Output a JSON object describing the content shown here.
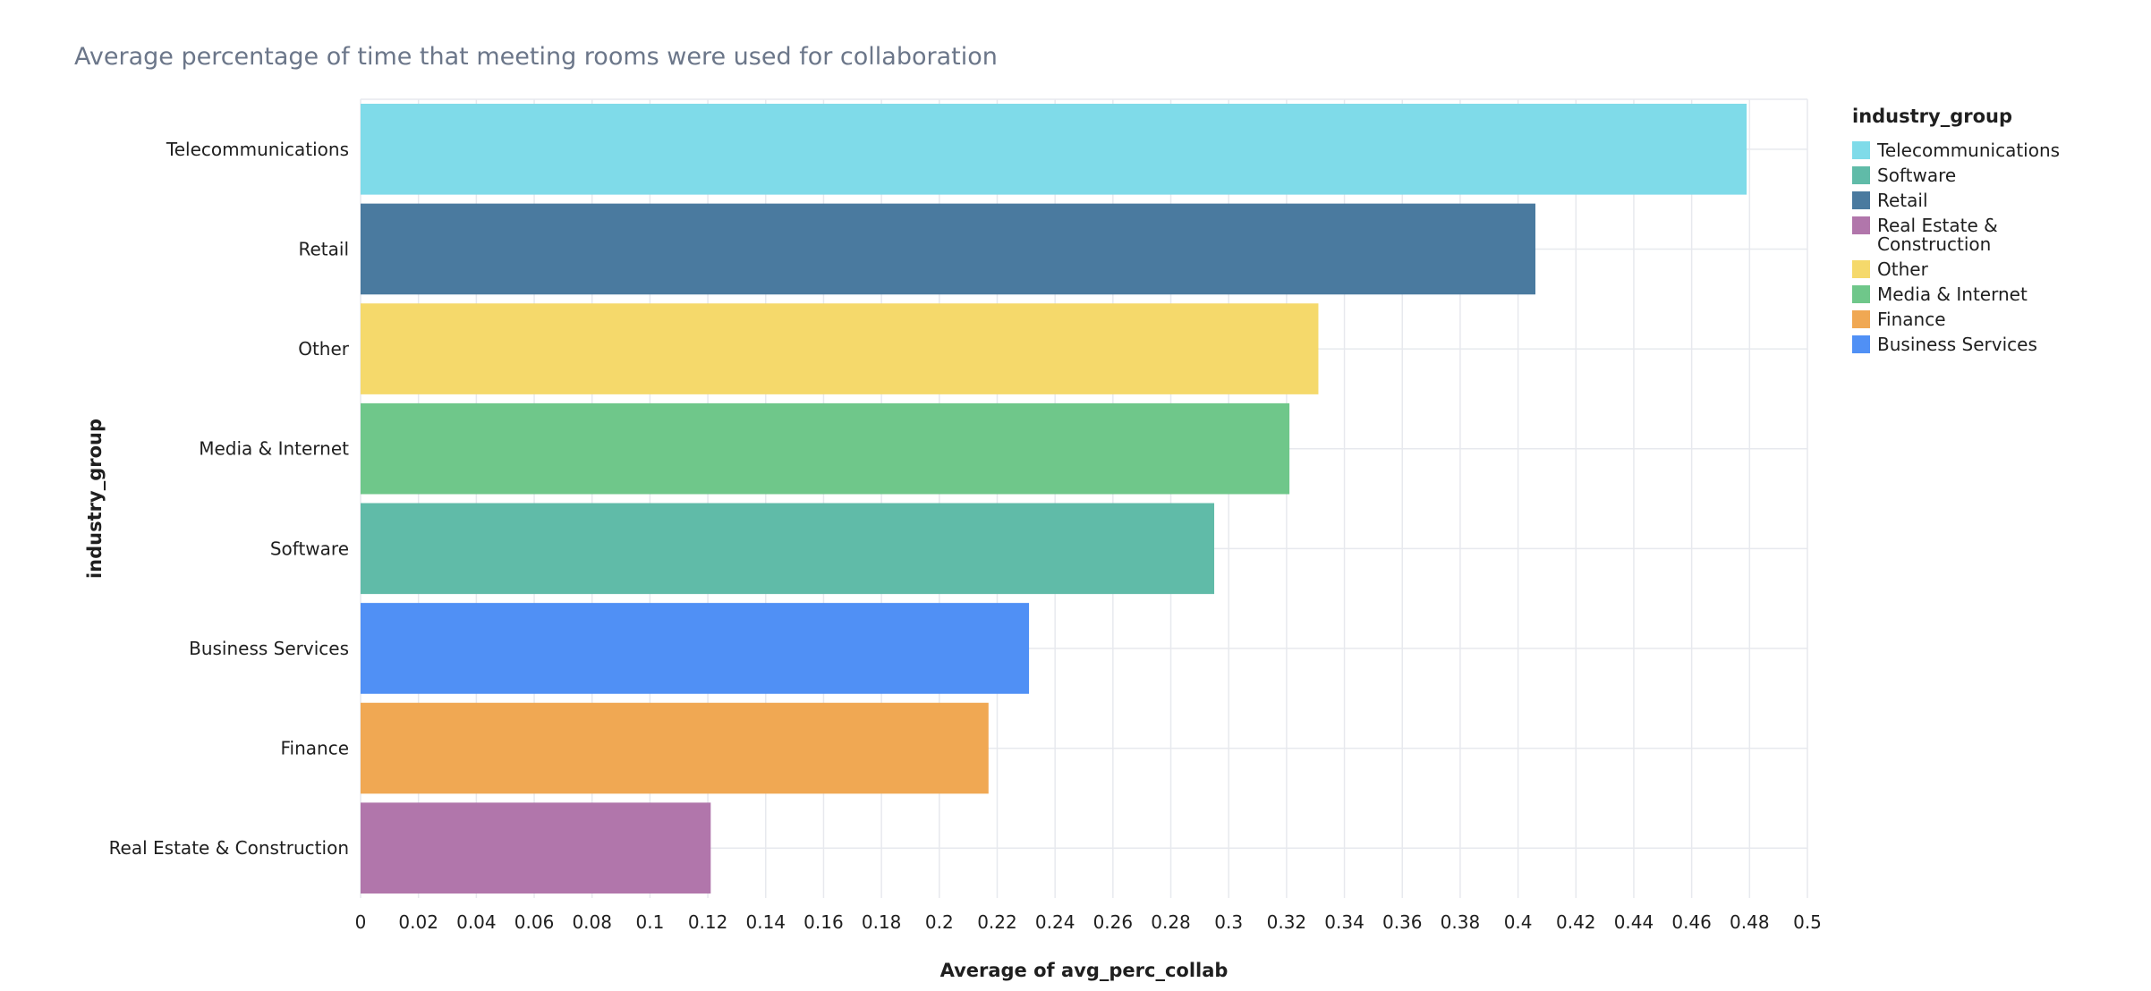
{
  "chart_data": {
    "type": "bar",
    "orientation": "horizontal",
    "title": "Average percentage of time that meeting rooms were used for collaboration",
    "xlabel": "Average of avg_perc_collab",
    "ylabel": "industry_group",
    "xlim": [
      0,
      0.5
    ],
    "x_ticks": [
      "0",
      "0.02",
      "0.04",
      "0.06",
      "0.08",
      "0.1",
      "0.12",
      "0.14",
      "0.16",
      "0.18",
      "0.2",
      "0.22",
      "0.24",
      "0.26",
      "0.28",
      "0.3",
      "0.32",
      "0.34",
      "0.36",
      "0.38",
      "0.4",
      "0.42",
      "0.44",
      "0.46",
      "0.48",
      "0.5"
    ],
    "grid": true,
    "categories": [
      "Telecommunications",
      "Retail",
      "Other",
      "Media & Internet",
      "Software",
      "Business Services",
      "Finance",
      "Real Estate & Construction"
    ],
    "values": [
      0.479,
      0.406,
      0.331,
      0.321,
      0.295,
      0.231,
      0.217,
      0.121
    ],
    "colors": [
      "#7fdbe9",
      "#4a7a9f",
      "#f5d96b",
      "#6fc78a",
      "#60bba8",
      "#5090f5",
      "#f0a853",
      "#b176ab"
    ],
    "legend": {
      "title": "industry_group",
      "position": "right",
      "items": [
        {
          "label": "Telecommunications",
          "color": "#7fdbe9"
        },
        {
          "label": "Software",
          "color": "#60bba8"
        },
        {
          "label": "Retail",
          "color": "#4a7a9f"
        },
        {
          "label": "Real Estate & Construction",
          "color": "#b176ab"
        },
        {
          "label": "Other",
          "color": "#f5d96b"
        },
        {
          "label": "Media & Internet",
          "color": "#6fc78a"
        },
        {
          "label": "Finance",
          "color": "#f0a853"
        },
        {
          "label": "Business Services",
          "color": "#5090f5"
        }
      ]
    }
  }
}
